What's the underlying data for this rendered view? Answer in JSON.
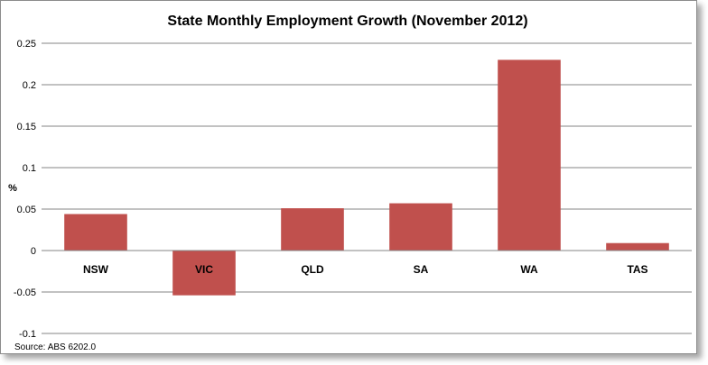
{
  "chart_data": {
    "type": "bar",
    "title": "State Monthly Employment Growth (November 2012)",
    "ylabel": "%",
    "xlabel": "",
    "categories": [
      "NSW",
      "VIC",
      "QLD",
      "SA",
      "WA",
      "TAS"
    ],
    "values": [
      0.044,
      -0.054,
      0.051,
      0.057,
      0.23,
      0.009
    ],
    "ylim": [
      -0.1,
      0.25
    ],
    "yticks": [
      "0.25",
      "0.2",
      "0.15",
      "0.1",
      "0.05",
      "0",
      "-0.05",
      "-0.1"
    ],
    "ytick_values": [
      0.25,
      0.2,
      0.15,
      0.1,
      0.05,
      0,
      -0.05,
      -0.1
    ],
    "grid": true,
    "bar_color": "#c0504d",
    "source": "Source: ABS 6202.0"
  }
}
